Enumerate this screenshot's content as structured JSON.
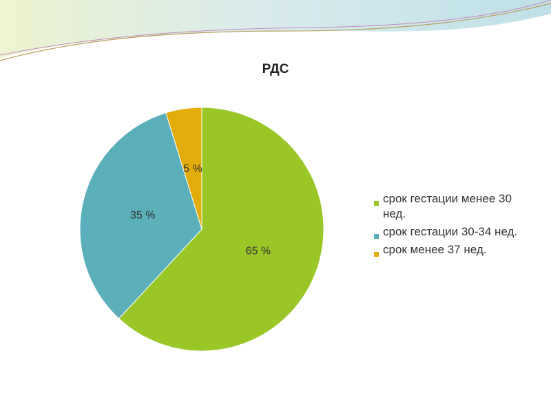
{
  "chart_data": {
    "type": "pie",
    "title": "РДС",
    "categories": [
      "срок гестации менее 30 нед.",
      "срок гестации 30-34 нед.",
      "срок менее 37 нед."
    ],
    "values": [
      65,
      35,
      5
    ],
    "value_labels": [
      "65 %",
      "35 %",
      "5 %"
    ],
    "colors": [
      "#9ac728",
      "#5aafbb",
      "#e2ad0a"
    ],
    "legend": "right"
  }
}
